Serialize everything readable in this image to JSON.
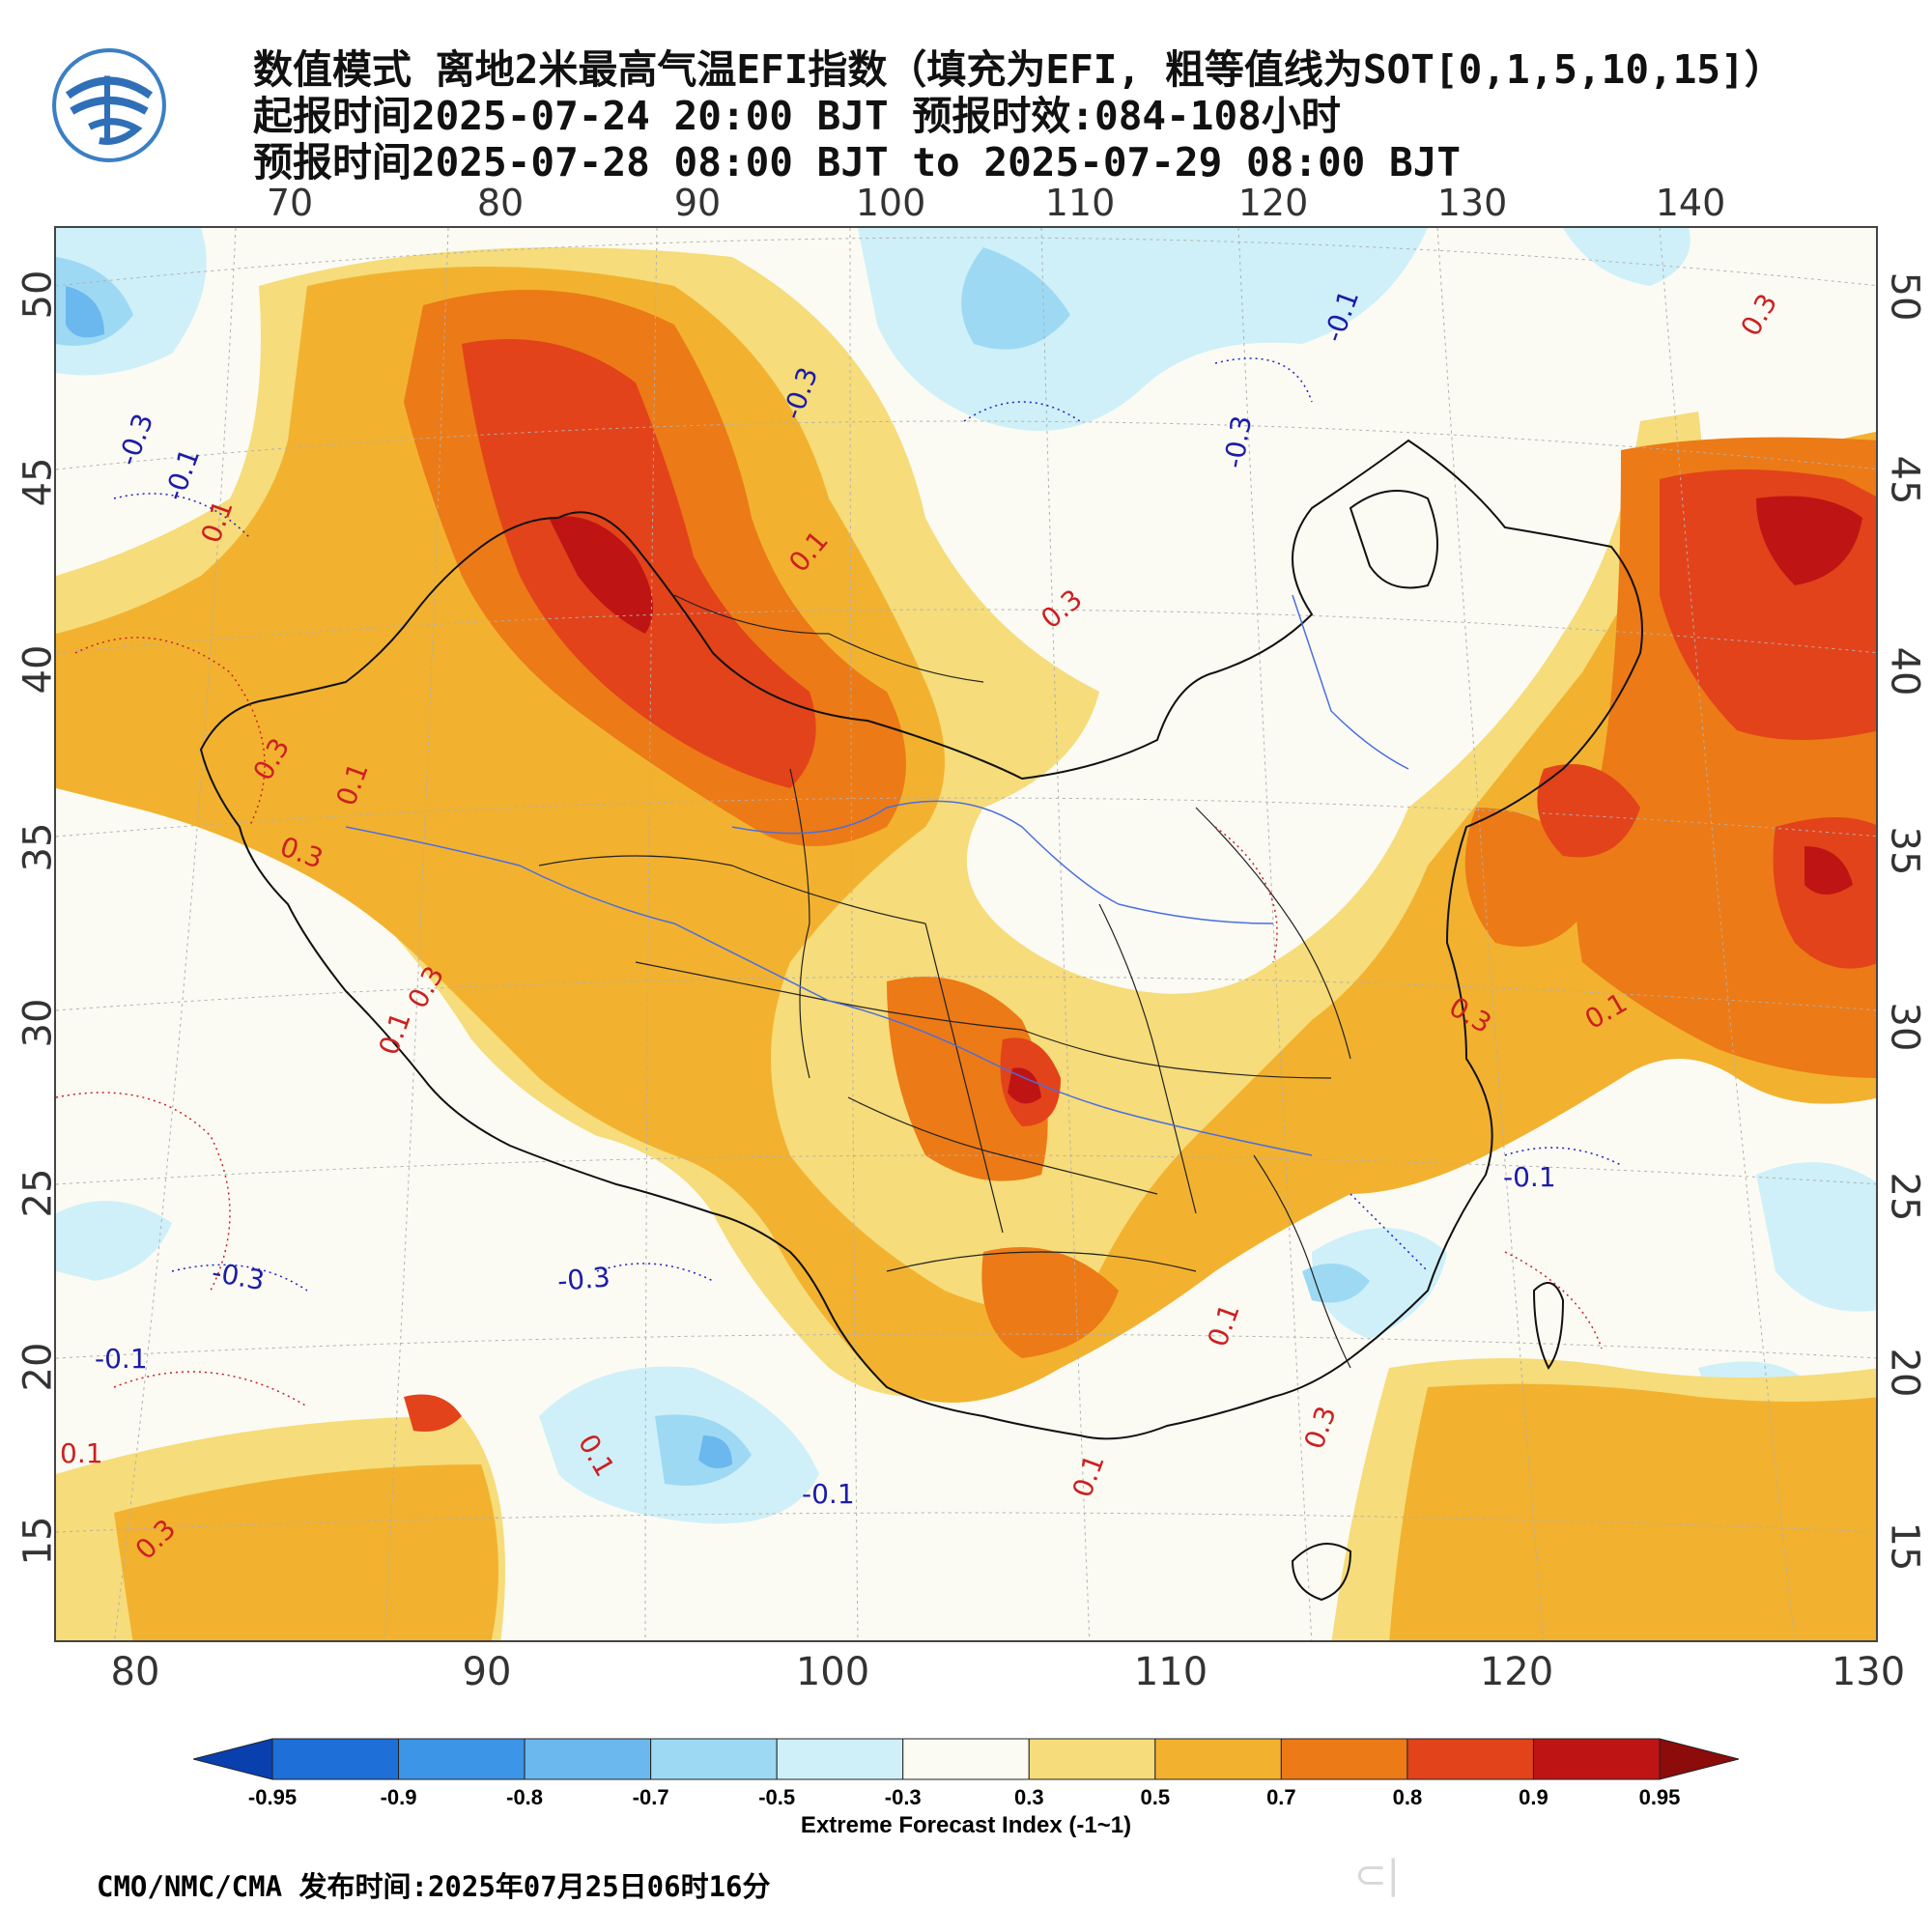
{
  "header": {
    "line1": "数值模式 离地2米最高气温EFI指数（填充为EFI, 粗等值线为SOT[0,1,5,10,15]）",
    "line2": "起报时间2025-07-24 20:00 BJT 预报时效:084-108小时",
    "line3": "预报时间2025-07-28 08:00 BJT to 2025-07-29 08:00 BJT"
  },
  "axes": {
    "top_lon": [
      "70",
      "80",
      "90",
      "100",
      "110",
      "120",
      "130",
      "140"
    ],
    "bottom_lon": [
      "80",
      "90",
      "100",
      "110",
      "120",
      "130"
    ],
    "left_lat": [
      "50",
      "45",
      "40",
      "35",
      "30",
      "25",
      "20",
      "15"
    ],
    "right_lat": [
      "50",
      "45",
      "40",
      "35",
      "30",
      "25",
      "20",
      "15"
    ]
  },
  "contour_labels": [
    {
      "text": "-0.3",
      "color": "blue"
    },
    {
      "text": "-0.1",
      "color": "blue"
    },
    {
      "text": "0.1",
      "color": "red"
    },
    {
      "text": "0.3",
      "color": "red"
    },
    {
      "text": "0.1",
      "color": "red"
    },
    {
      "text": "0.3",
      "color": "red"
    },
    {
      "text": "-0.3",
      "color": "blue"
    },
    {
      "text": "-0.3",
      "color": "blue"
    },
    {
      "text": "0.3",
      "color": "red"
    },
    {
      "text": "0.1",
      "color": "red"
    },
    {
      "text": "-0.1",
      "color": "blue"
    },
    {
      "text": "-0.3",
      "color": "blue"
    },
    {
      "text": "-0.3",
      "color": "blue"
    },
    {
      "text": "-0.1",
      "color": "blue"
    },
    {
      "text": "0.1",
      "color": "red"
    },
    {
      "text": "0.1",
      "color": "red"
    },
    {
      "text": "0.3",
      "color": "red"
    },
    {
      "text": "-0.1",
      "color": "blue"
    },
    {
      "text": "0.1",
      "color": "red"
    },
    {
      "text": "0.3",
      "color": "red"
    },
    {
      "text": "0.1",
      "color": "red"
    },
    {
      "text": "0.3",
      "color": "red"
    },
    {
      "text": "0.3",
      "color": "red"
    },
    {
      "text": "0.1",
      "color": "red"
    },
    {
      "text": "-0.1",
      "color": "blue"
    },
    {
      "text": "0.3",
      "color": "red"
    },
    {
      "text": "0.1",
      "color": "red"
    }
  ],
  "colorbar": {
    "labels": [
      "-0.95",
      "-0.9",
      "-0.8",
      "-0.7",
      "-0.5",
      "-0.3",
      "0.3",
      "0.5",
      "0.7",
      "0.8",
      "0.9",
      "0.95"
    ],
    "colors": [
      "#0a3fae",
      "#1f6fd8",
      "#3c95e6",
      "#6bb8ef",
      "#9ed9f4",
      "#cff0f8",
      "#fbfbf4",
      "#f6dc7a",
      "#f2b22f",
      "#ec7a16",
      "#e2431a",
      "#bf1414",
      "#8c0b0b"
    ],
    "title": "Extreme Forecast Index (-1~1)"
  },
  "footer": "CMO/NMC/CMA 发布时间:2025年07月25日06时16分",
  "watermark": "⊂|"
}
